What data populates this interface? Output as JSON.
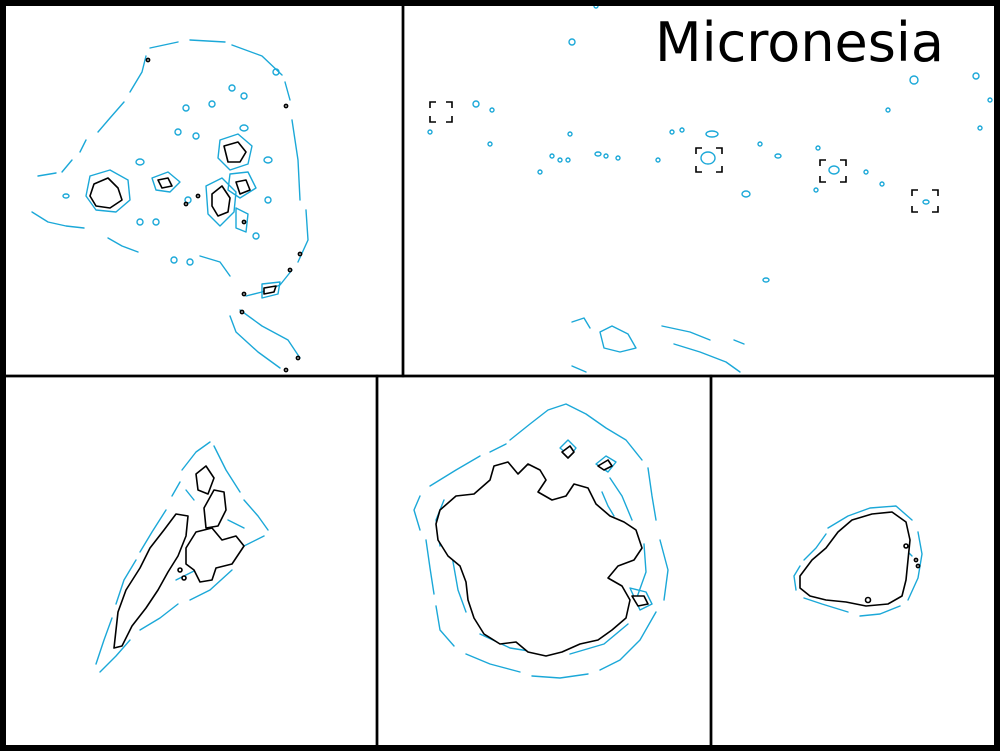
{
  "title": "Micronesia",
  "colors": {
    "reef": "#1ba8d8",
    "land": "#000000",
    "background": "#ffffff",
    "border": "#000000"
  },
  "panels": [
    "inset-chuuk-lagoon",
    "overview-caroline-islands",
    "inset-pohnpei",
    "inset-kosrae",
    "inset-yap"
  ]
}
